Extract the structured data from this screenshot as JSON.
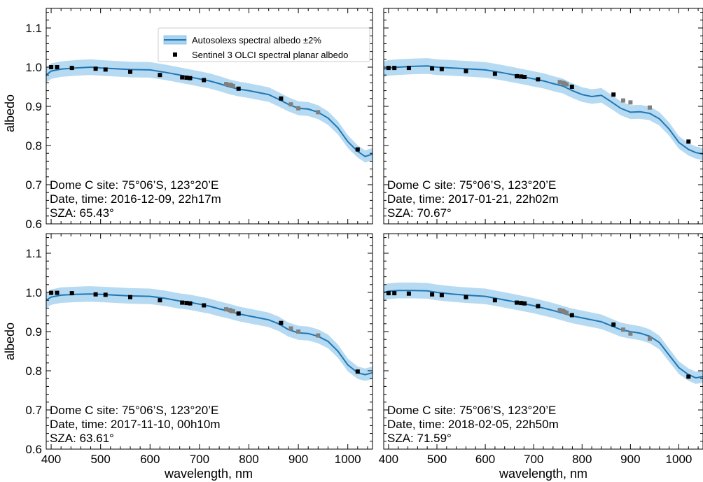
{
  "figure": {
    "ylabel_top": "albedo",
    "ylabel_bottom": "albedo",
    "xlabel_left": "wavelength, nm",
    "xlabel_right": "wavelength, nm"
  },
  "legend": {
    "band_label": "Autosolexs spectral albedo ±2%",
    "points_label": "Sentinel 3 OLCI spectral planar albedo",
    "placement": "top-center of first panel"
  },
  "colors": {
    "line": "#1f77b4",
    "band": "#a9d3ef",
    "points_main": "#000000",
    "points_grey": "#808080"
  },
  "chart_data": [
    {
      "type": "line",
      "xlim": [
        390,
        1050
      ],
      "ylim": [
        0.6,
        1.15
      ],
      "xticks": [
        "400",
        "500",
        "600",
        "700",
        "800",
        "900",
        "1000"
      ],
      "yticks": [
        "0.6",
        "0.7",
        "0.8",
        "0.9",
        "1.0",
        "1.1"
      ],
      "annotation": [
        "Dome C site: 75°06’S, 123°20’E",
        "Date, time: 2016-12-09, 22h17m",
        "SZA: 65.43°"
      ],
      "series": [
        {
          "x": [
            390,
            400,
            420,
            450,
            480,
            500,
            530,
            560,
            600,
            630,
            660,
            680,
            700,
            720,
            740,
            760,
            780,
            800,
            820,
            840,
            860,
            880,
            900,
            920,
            940,
            960,
            980,
            1000,
            1020,
            1035,
            1050
          ],
          "values": [
            0.98,
            0.99,
            0.995,
            0.998,
            1.0,
            0.998,
            0.996,
            0.994,
            0.993,
            0.987,
            0.98,
            0.975,
            0.97,
            0.965,
            0.958,
            0.95,
            0.944,
            0.94,
            0.935,
            0.93,
            0.918,
            0.905,
            0.895,
            0.893,
            0.885,
            0.87,
            0.845,
            0.81,
            0.785,
            0.772,
            0.778
          ]
        },
        {
          "x": [
            400,
            412,
            442,
            490,
            510,
            560,
            620,
            665,
            674,
            681,
            709,
            754,
            761,
            764,
            768,
            779,
            865,
            885,
            900,
            940,
            1020
          ],
          "values": [
            1.0,
            1.0,
            0.998,
            0.996,
            0.994,
            0.988,
            0.98,
            0.974,
            0.973,
            0.972,
            0.967,
            0.957,
            0.955,
            0.954,
            0.952,
            0.945,
            0.92,
            0.905,
            0.895,
            0.885,
            0.79
          ],
          "colors": [
            "k",
            "k",
            "k",
            "k",
            "k",
            "k",
            "k",
            "k",
            "k",
            "k",
            "k",
            "g",
            "g",
            "g",
            "g",
            "k",
            "k",
            "g",
            "g",
            "g",
            "k"
          ]
        }
      ]
    },
    {
      "type": "line",
      "xlim": [
        390,
        1050
      ],
      "ylim": [
        0.6,
        1.15
      ],
      "xticks": [
        "400",
        "500",
        "600",
        "700",
        "800",
        "900",
        "1000"
      ],
      "yticks": [
        "0.6",
        "0.7",
        "0.8",
        "0.9",
        "1.0",
        "1.1"
      ],
      "annotation": [
        "Dome C site: 75°06’S, 123°20’E",
        "Date, time: 2017-01-21, 22h02m",
        "SZA: 70.67°"
      ],
      "series": [
        {
          "x": [
            390,
            400,
            420,
            450,
            480,
            500,
            530,
            560,
            600,
            630,
            660,
            680,
            700,
            720,
            740,
            760,
            780,
            800,
            820,
            840,
            860,
            880,
            900,
            920,
            940,
            960,
            980,
            1000,
            1020,
            1035,
            1050
          ],
          "values": [
            0.995,
            0.998,
            1.0,
            1.002,
            1.003,
            1.0,
            0.998,
            0.996,
            0.993,
            0.987,
            0.98,
            0.975,
            0.97,
            0.965,
            0.958,
            0.952,
            0.94,
            0.93,
            0.925,
            0.928,
            0.912,
            0.895,
            0.885,
            0.886,
            0.882,
            0.868,
            0.842,
            0.808,
            0.79,
            0.782,
            0.778
          ]
        },
        {
          "x": [
            400,
            412,
            442,
            490,
            510,
            560,
            620,
            665,
            674,
            681,
            709,
            754,
            761,
            764,
            768,
            779,
            865,
            885,
            900,
            940,
            1020
          ],
          "values": [
            0.998,
            0.998,
            0.998,
            0.997,
            0.995,
            0.99,
            0.983,
            0.977,
            0.976,
            0.975,
            0.969,
            0.962,
            0.96,
            0.958,
            0.956,
            0.95,
            0.93,
            0.915,
            0.91,
            0.897,
            0.81
          ],
          "colors": [
            "k",
            "k",
            "k",
            "k",
            "k",
            "k",
            "k",
            "k",
            "k",
            "k",
            "k",
            "g",
            "g",
            "g",
            "g",
            "k",
            "k",
            "g",
            "g",
            "g",
            "k"
          ]
        }
      ]
    },
    {
      "type": "line",
      "xlim": [
        390,
        1050
      ],
      "ylim": [
        0.6,
        1.15
      ],
      "xticks": [
        "400",
        "500",
        "600",
        "700",
        "800",
        "900",
        "1000"
      ],
      "yticks": [
        "0.6",
        "0.7",
        "0.8",
        "0.9",
        "1.0",
        "1.1"
      ],
      "annotation": [
        "Dome C site: 75°06’S, 123°20’E",
        "Date, time: 2017-11-10, 00h10m",
        "SZA: 63.61°"
      ],
      "series": [
        {
          "x": [
            390,
            400,
            420,
            450,
            480,
            500,
            530,
            560,
            600,
            630,
            660,
            680,
            700,
            720,
            740,
            760,
            780,
            800,
            820,
            840,
            860,
            880,
            900,
            920,
            940,
            960,
            980,
            1000,
            1020,
            1035,
            1050
          ],
          "values": [
            0.98,
            0.988,
            0.993,
            0.995,
            0.996,
            0.995,
            0.993,
            0.991,
            0.99,
            0.985,
            0.978,
            0.975,
            0.97,
            0.965,
            0.958,
            0.952,
            0.945,
            0.94,
            0.935,
            0.93,
            0.92,
            0.905,
            0.897,
            0.895,
            0.888,
            0.875,
            0.85,
            0.815,
            0.795,
            0.79,
            0.795
          ]
        },
        {
          "x": [
            400,
            412,
            442,
            490,
            510,
            560,
            620,
            665,
            674,
            681,
            709,
            754,
            761,
            764,
            768,
            779,
            865,
            885,
            900,
            940,
            1020
          ],
          "values": [
            0.999,
            0.999,
            0.998,
            0.995,
            0.994,
            0.988,
            0.98,
            0.974,
            0.973,
            0.972,
            0.967,
            0.957,
            0.955,
            0.953,
            0.952,
            0.946,
            0.922,
            0.908,
            0.9,
            0.89,
            0.798
          ],
          "colors": [
            "k",
            "k",
            "k",
            "k",
            "k",
            "k",
            "k",
            "k",
            "k",
            "k",
            "k",
            "g",
            "g",
            "g",
            "g",
            "k",
            "k",
            "g",
            "g",
            "g",
            "k"
          ]
        }
      ]
    },
    {
      "type": "line",
      "xlim": [
        390,
        1050
      ],
      "ylim": [
        0.6,
        1.15
      ],
      "xticks": [
        "400",
        "500",
        "600",
        "700",
        "800",
        "900",
        "1000"
      ],
      "yticks": [
        "0.6",
        "0.7",
        "0.8",
        "0.9",
        "1.0",
        "1.1"
      ],
      "annotation": [
        "Dome C site: 75°06’S, 123°20’E",
        "Date, time: 2018-02-05, 22h50m",
        "SZA: 71.59°"
      ],
      "series": [
        {
          "x": [
            390,
            400,
            420,
            450,
            480,
            500,
            530,
            560,
            600,
            630,
            660,
            680,
            700,
            720,
            740,
            760,
            780,
            800,
            820,
            840,
            860,
            880,
            900,
            920,
            940,
            960,
            980,
            1000,
            1020,
            1035,
            1050
          ],
          "values": [
            1.0,
            1.003,
            1.005,
            1.005,
            1.004,
            1.0,
            0.996,
            0.993,
            0.99,
            0.983,
            0.976,
            0.971,
            0.966,
            0.96,
            0.954,
            0.947,
            0.94,
            0.935,
            0.93,
            0.925,
            0.915,
            0.905,
            0.9,
            0.896,
            0.888,
            0.872,
            0.84,
            0.808,
            0.79,
            0.782,
            0.785
          ]
        },
        {
          "x": [
            400,
            412,
            442,
            490,
            510,
            560,
            620,
            665,
            674,
            681,
            709,
            754,
            761,
            764,
            768,
            779,
            865,
            885,
            900,
            940,
            1020
          ],
          "values": [
            0.998,
            0.998,
            0.997,
            0.995,
            0.993,
            0.988,
            0.98,
            0.974,
            0.973,
            0.972,
            0.965,
            0.955,
            0.953,
            0.95,
            0.948,
            0.942,
            0.918,
            0.905,
            0.895,
            0.882,
            0.785
          ],
          "colors": [
            "k",
            "k",
            "k",
            "k",
            "k",
            "k",
            "k",
            "k",
            "k",
            "k",
            "k",
            "g",
            "g",
            "g",
            "g",
            "k",
            "k",
            "g",
            "g",
            "g",
            "k"
          ]
        }
      ]
    }
  ]
}
